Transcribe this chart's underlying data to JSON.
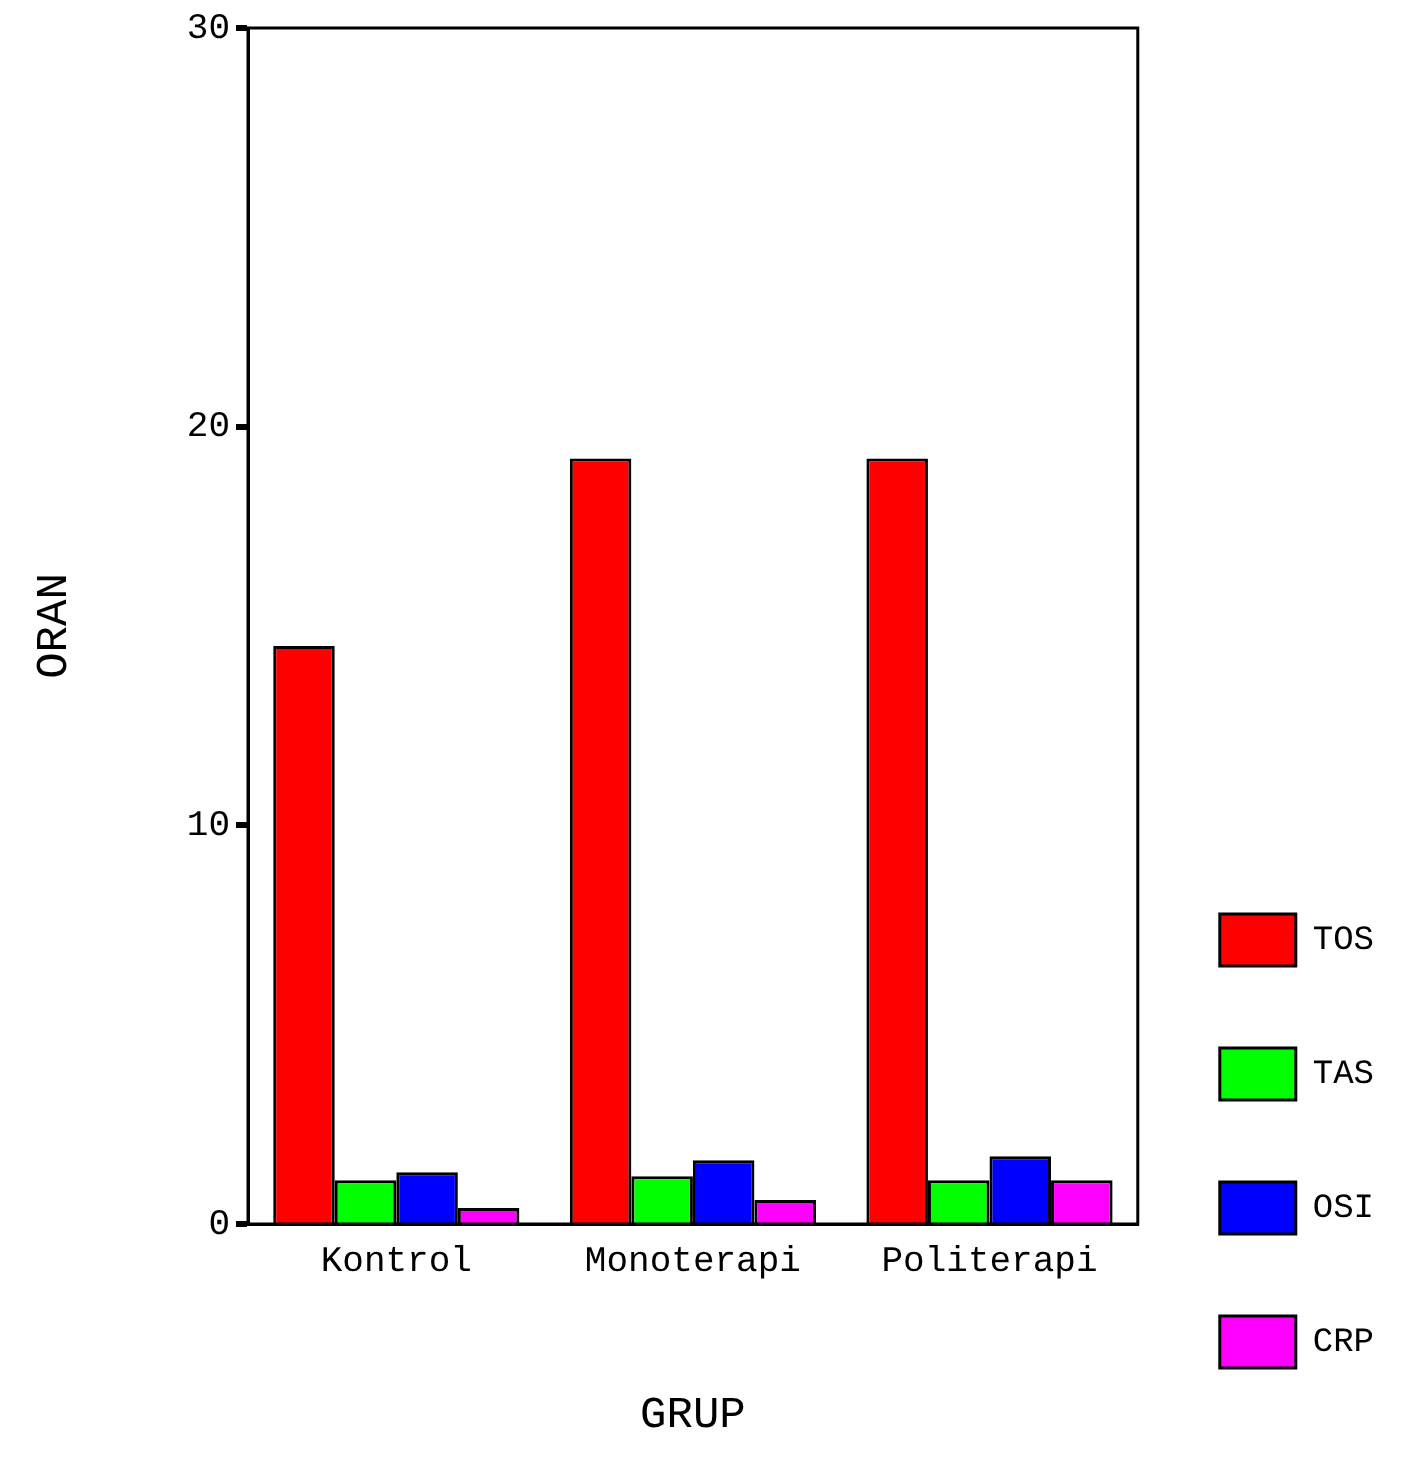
{
  "chart_data": {
    "type": "bar",
    "xlabel": "GRUP",
    "ylabel": "ORAN",
    "categories": [
      "Kontrol",
      "Monoterapi",
      "Politerapi"
    ],
    "series": [
      {
        "name": "TOS",
        "color": "#ff0000",
        "values": [
          14.5,
          19.2,
          19.2
        ]
      },
      {
        "name": "TAS",
        "color": "#00ff00",
        "values": [
          1.1,
          1.2,
          1.1
        ]
      },
      {
        "name": "OSI",
        "color": "#0000ff",
        "values": [
          1.3,
          1.6,
          1.7
        ]
      },
      {
        "name": "CRP",
        "color": "#ff00ff",
        "values": [
          0.4,
          0.6,
          1.1
        ]
      }
    ],
    "ylim": [
      0,
      30
    ],
    "yticks": [
      0,
      10,
      20,
      30
    ],
    "grid": false,
    "legend": "right"
  }
}
